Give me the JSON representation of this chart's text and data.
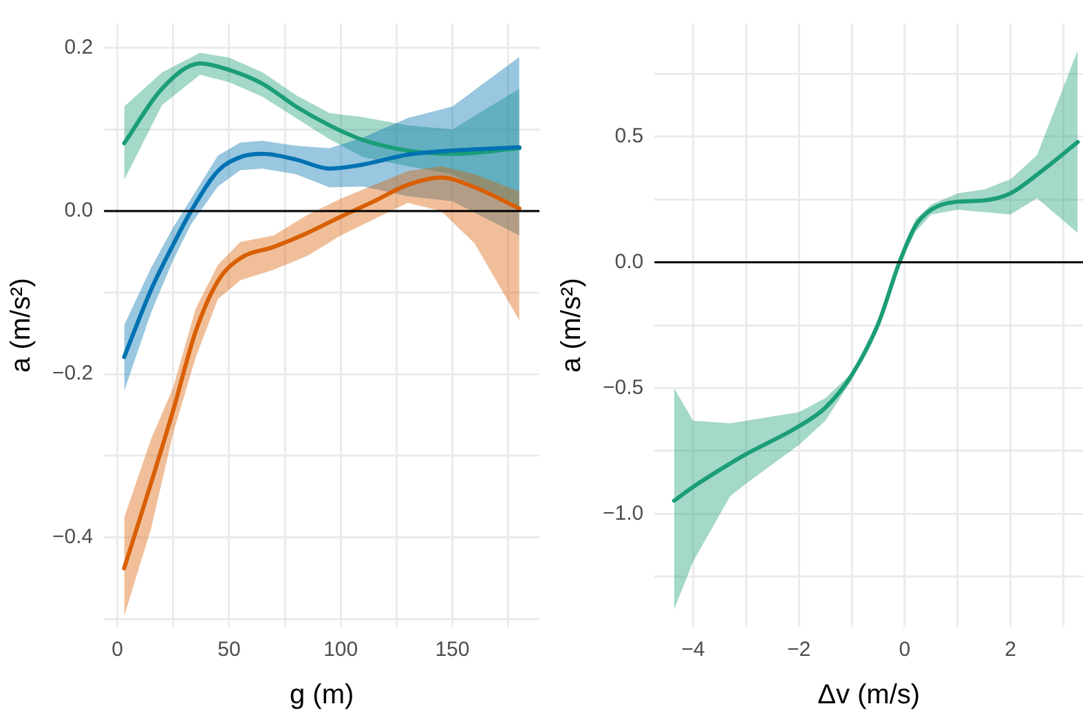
{
  "chart_data": [
    {
      "type": "line",
      "xlabel": "g (m)",
      "ylabel": "a (m/s²)",
      "grid": true,
      "legend": false,
      "xlim": [
        -6,
        189
      ],
      "ylim": [
        -0.51,
        0.23
      ],
      "xticks": [
        {
          "value": 0,
          "label": "0"
        },
        {
          "value": 25,
          "label": null
        },
        {
          "value": 50,
          "label": "50"
        },
        {
          "value": 75,
          "label": null
        },
        {
          "value": 100,
          "label": "100"
        },
        {
          "value": 125,
          "label": null
        },
        {
          "value": 150,
          "label": "150"
        },
        {
          "value": 175,
          "label": null
        }
      ],
      "yticks": [
        {
          "value": -0.5,
          "label": null
        },
        {
          "value": -0.4,
          "label": "−0.4"
        },
        {
          "value": -0.3,
          "label": null
        },
        {
          "value": -0.2,
          "label": "−0.2"
        },
        {
          "value": -0.1,
          "label": null
        },
        {
          "value": 0,
          "label": "0.0"
        },
        {
          "value": 0.1,
          "label": null
        },
        {
          "value": 0.2,
          "label": "0.2"
        }
      ],
      "ref_lines": [
        {
          "axis": "y",
          "value": 0,
          "color": "#000000"
        }
      ],
      "series": [
        {
          "color": "#d95f02",
          "x": [
            3,
            15,
            25,
            35,
            45,
            55,
            70,
            85,
            100,
            115,
            130,
            145,
            160,
            180
          ],
          "values": [
            -0.438,
            -0.334,
            -0.244,
            -0.148,
            -0.086,
            -0.058,
            -0.044,
            -0.027,
            -0.007,
            0.012,
            0.032,
            0.041,
            0.029,
            0.003
          ],
          "lower": [
            -0.497,
            -0.39,
            -0.272,
            -0.18,
            -0.108,
            -0.085,
            -0.072,
            -0.055,
            -0.03,
            -0.01,
            0.01,
            0.0,
            -0.04,
            -0.134
          ],
          "upper": [
            -0.376,
            -0.28,
            -0.216,
            -0.12,
            -0.066,
            -0.038,
            -0.03,
            -0.005,
            0.015,
            0.032,
            0.049,
            0.055,
            0.045,
            0.024
          ]
        },
        {
          "color": "#0072b2",
          "x": [
            3,
            15,
            25,
            33,
            45,
            55,
            65,
            80,
            95,
            110,
            130,
            150,
            180
          ],
          "values": [
            -0.179,
            -0.097,
            -0.041,
            0.0,
            0.049,
            0.066,
            0.07,
            0.063,
            0.052,
            0.057,
            0.069,
            0.074,
            0.078
          ],
          "lower": [
            -0.221,
            -0.125,
            -0.06,
            -0.016,
            0.03,
            0.05,
            0.052,
            0.045,
            0.029,
            0.03,
            0.018,
            0.012,
            -0.03
          ],
          "upper": [
            -0.14,
            -0.07,
            -0.02,
            0.015,
            0.068,
            0.084,
            0.086,
            0.08,
            0.077,
            0.09,
            0.114,
            0.128,
            0.189
          ]
        },
        {
          "color": "#1b9e77",
          "x": [
            3,
            20,
            37,
            50,
            65,
            80,
            95,
            110,
            130,
            150,
            180
          ],
          "values": [
            0.083,
            0.15,
            0.181,
            0.173,
            0.156,
            0.128,
            0.105,
            0.087,
            0.074,
            0.07,
            0.077
          ],
          "lower": [
            0.038,
            0.13,
            0.167,
            0.158,
            0.14,
            0.114,
            0.088,
            0.066,
            0.055,
            0.045,
            0.0
          ],
          "upper": [
            0.128,
            0.17,
            0.194,
            0.188,
            0.17,
            0.142,
            0.12,
            0.115,
            0.105,
            0.1,
            0.15
          ]
        }
      ]
    },
    {
      "type": "line",
      "xlabel": "Δv (m/s)",
      "ylabel": "a (m/s²)",
      "grid": true,
      "legend": false,
      "xlim": [
        -4.73,
        3.37
      ],
      "ylim": [
        -1.45,
        0.95
      ],
      "xticks": [
        {
          "value": -4,
          "label": "−4"
        },
        {
          "value": -3,
          "label": null
        },
        {
          "value": -2,
          "label": "−2"
        },
        {
          "value": -1,
          "label": null
        },
        {
          "value": 0,
          "label": "0"
        },
        {
          "value": 1,
          "label": null
        },
        {
          "value": 2,
          "label": "2"
        },
        {
          "value": 3,
          "label": null
        }
      ],
      "yticks": [
        {
          "value": -1.25,
          "label": null
        },
        {
          "value": -1,
          "label": "−1.0"
        },
        {
          "value": -0.75,
          "label": null
        },
        {
          "value": -0.5,
          "label": "−0.5"
        },
        {
          "value": -0.25,
          "label": null
        },
        {
          "value": 0,
          "label": "0.0"
        },
        {
          "value": 0.25,
          "label": null
        },
        {
          "value": 0.5,
          "label": "0.5"
        },
        {
          "value": 0.75,
          "label": null
        }
      ],
      "ref_lines": [
        {
          "axis": "y",
          "value": 0,
          "color": "#000000"
        }
      ],
      "series": [
        {
          "color": "#1b9e77",
          "x": [
            -4.36,
            -4,
            -3.3,
            -3,
            -2,
            -1.5,
            -1,
            -0.5,
            -0.1,
            0.2,
            0.5,
            1,
            1.5,
            2,
            2.5,
            3.27
          ],
          "values": [
            -0.948,
            -0.893,
            -0.8,
            -0.763,
            -0.652,
            -0.578,
            -0.448,
            -0.244,
            0.0,
            0.144,
            0.209,
            0.241,
            0.246,
            0.274,
            0.348,
            0.478
          ],
          "lower": [
            -1.38,
            -1.19,
            -0.93,
            -0.88,
            -0.726,
            -0.63,
            -0.467,
            -0.26,
            -0.01,
            0.12,
            0.19,
            0.209,
            0.2,
            0.19,
            0.255,
            0.117
          ],
          "upper": [
            -0.5,
            -0.63,
            -0.64,
            -0.63,
            -0.596,
            -0.54,
            -0.44,
            -0.23,
            0.01,
            0.17,
            0.23,
            0.274,
            0.29,
            0.33,
            0.426,
            0.843
          ]
        }
      ]
    }
  ]
}
